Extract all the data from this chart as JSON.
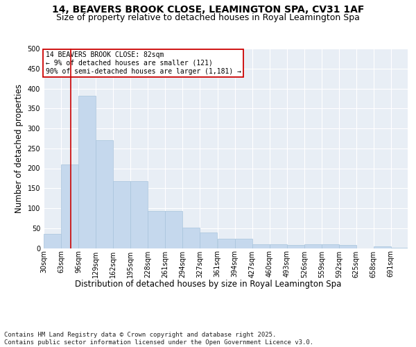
{
  "title": "14, BEAVERS BROOK CLOSE, LEAMINGTON SPA, CV31 1AF",
  "subtitle": "Size of property relative to detached houses in Royal Leamington Spa",
  "xlabel": "Distribution of detached houses by size in Royal Leamington Spa",
  "ylabel": "Number of detached properties",
  "categories": [
    "30sqm",
    "63sqm",
    "96sqm",
    "129sqm",
    "162sqm",
    "195sqm",
    "228sqm",
    "261sqm",
    "294sqm",
    "327sqm",
    "361sqm",
    "394sqm",
    "427sqm",
    "460sqm",
    "493sqm",
    "526sqm",
    "559sqm",
    "592sqm",
    "625sqm",
    "658sqm",
    "691sqm"
  ],
  "values": [
    35,
    210,
    381,
    271,
    168,
    168,
    93,
    93,
    52,
    40,
    23,
    23,
    10,
    10,
    8,
    10,
    10,
    7,
    0,
    4,
    1
  ],
  "bar_color": "#c5d8ed",
  "bar_edge_color": "#a8c4dc",
  "vline_x": 82,
  "vline_color": "#cc0000",
  "annotation_text": "14 BEAVERS BROOK CLOSE: 82sqm\n← 9% of detached houses are smaller (121)\n90% of semi-detached houses are larger (1,181) →",
  "annotation_box_color": "#cc0000",
  "annotation_bg": "#ffffff",
  "bg_color": "#e8eef5",
  "grid_color": "#ffffff",
  "ylim": [
    0,
    500
  ],
  "bin_width": 33,
  "footer": "Contains HM Land Registry data © Crown copyright and database right 2025.\nContains public sector information licensed under the Open Government Licence v3.0.",
  "title_fontsize": 10,
  "subtitle_fontsize": 9,
  "axis_label_fontsize": 8.5,
  "tick_fontsize": 7,
  "footer_fontsize": 6.5
}
